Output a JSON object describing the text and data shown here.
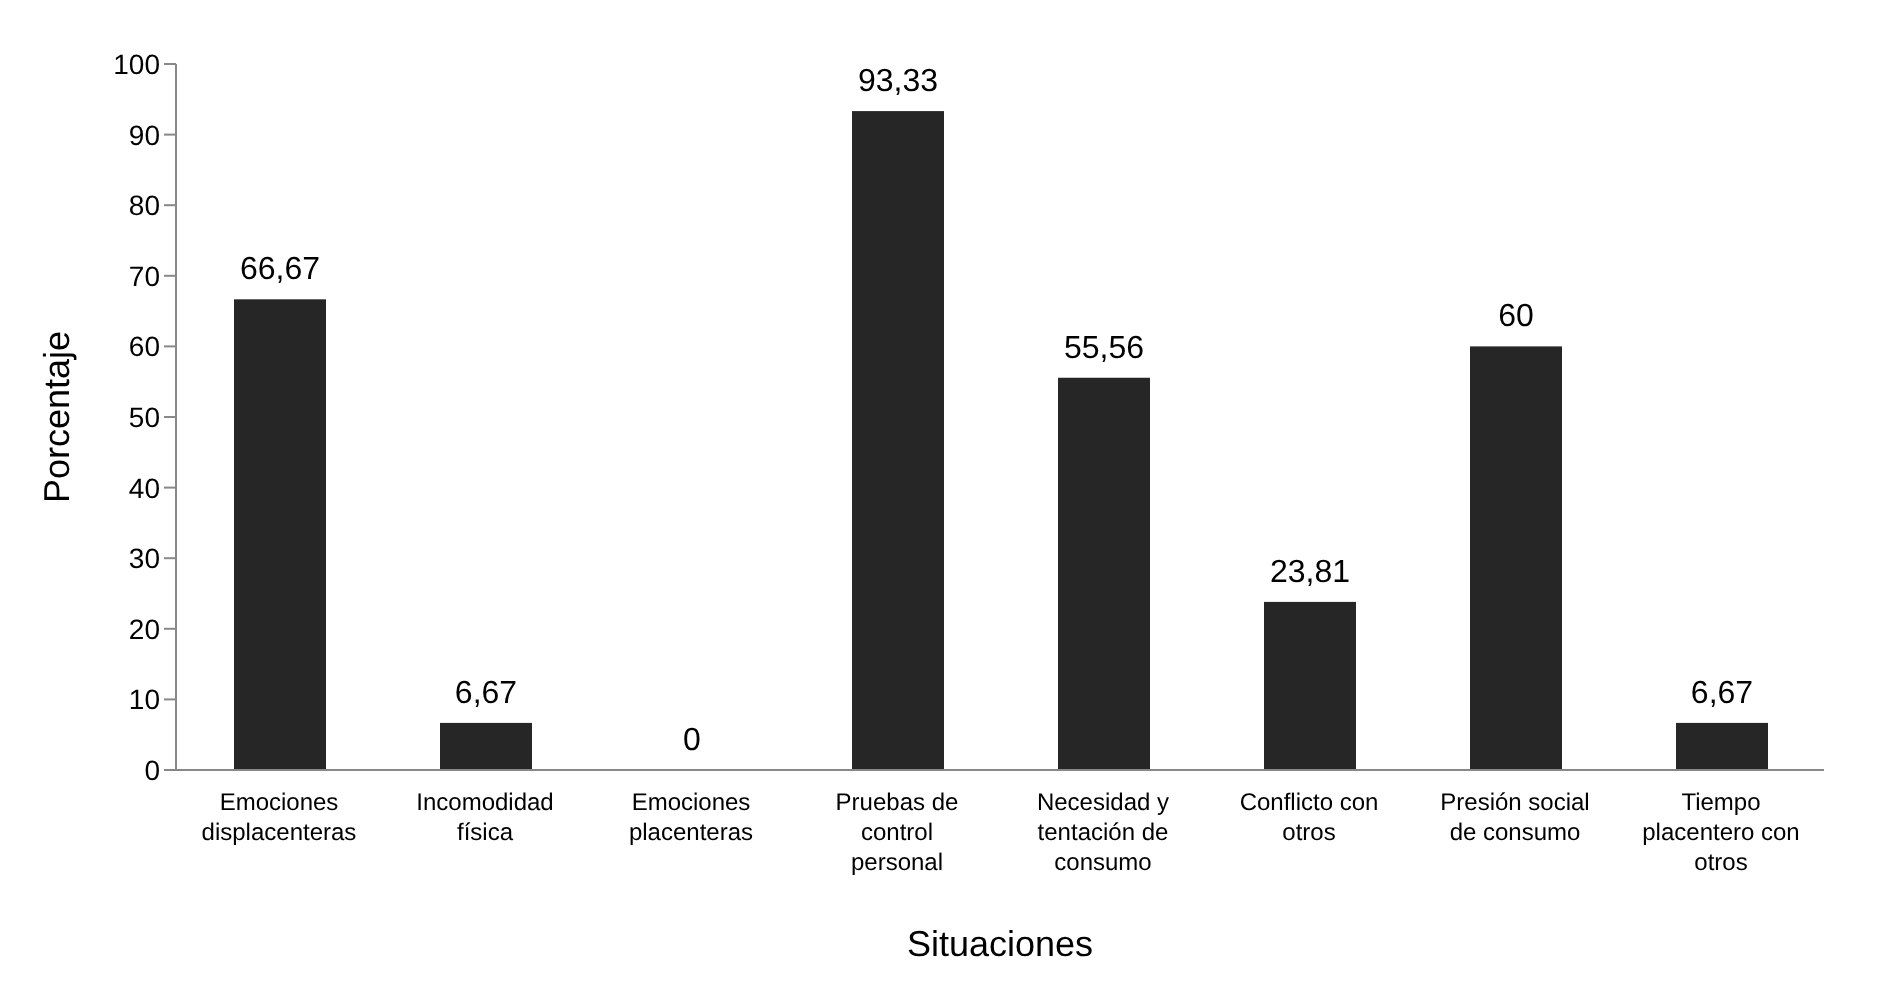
{
  "chart_data": {
    "type": "bar",
    "xlabel": "Situaciones",
    "ylabel": "Porcentaje",
    "categories": [
      "Emociones displacenteras",
      "Incomodidad física",
      "Emociones placenteras",
      "Pruebas de control personal",
      "Necesidad y tentación de consumo",
      "Conflicto con otros",
      "Presión social de consumo",
      "Tiempo placentero con otros"
    ],
    "values": [
      66.67,
      6.67,
      0,
      93.33,
      55.56,
      23.81,
      60,
      6.67
    ],
    "value_labels": [
      "66,67",
      "6,67",
      "0",
      "93,33",
      "55,56",
      "23,81",
      "60",
      "6,67"
    ],
    "color": "#262626",
    "ylim": [
      0,
      100
    ],
    "yticks": [
      0,
      10,
      20,
      30,
      40,
      50,
      60,
      70,
      80,
      90,
      100
    ],
    "grid": false
  }
}
